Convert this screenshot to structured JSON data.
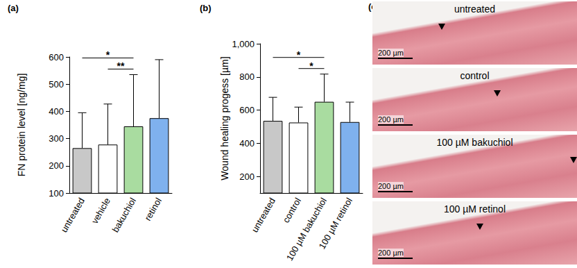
{
  "chart_data": [
    {
      "type": "bar",
      "title": "(a)",
      "y_label": "FN protein level [ng/mg]",
      "categories": [
        "untreated",
        "vehicle",
        "bakuchiol",
        "retinol"
      ],
      "values": [
        265,
        278,
        345,
        375
      ],
      "errors": [
        130,
        149,
        190,
        215
      ],
      "colors": [
        "#c8c8c8",
        "#ffffff",
        "#a9dca0",
        "#7fb1ee"
      ],
      "ylim": [
        100,
        600
      ],
      "yticks": [
        100,
        200,
        300,
        400,
        500,
        600
      ],
      "annotations": [
        {
          "from": "untreated",
          "to": "bakuchiol",
          "label": "*"
        },
        {
          "from": "vehicle",
          "to": "bakuchiol",
          "label": "**"
        }
      ]
    },
    {
      "type": "bar",
      "title": "(b)",
      "y_label": "Wound healing progess [µm]",
      "categories": [
        "untreated",
        "control",
        "100 µM bakuchiol",
        "100 µM retinol"
      ],
      "values": [
        535,
        525,
        650,
        528
      ],
      "errors": [
        142,
        93,
        167,
        120
      ],
      "colors": [
        "#c8c8c8",
        "#ffffff",
        "#a9dca0",
        "#7fb1ee"
      ],
      "ylim": [
        100,
        1000
      ],
      "yticks": [
        200,
        400,
        600,
        800,
        1000
      ],
      "annotations": [
        {
          "from": "untreated",
          "to": "100 µM bakuchiol",
          "label": "*"
        },
        {
          "from": "control",
          "to": "100 µM bakuchiol",
          "label": "*"
        }
      ]
    }
  ],
  "images": {
    "title": "(c)",
    "panels": [
      {
        "label": "untreated",
        "scale_bar": "200 µm"
      },
      {
        "label": "control",
        "scale_bar": "200 µm"
      },
      {
        "label": "100 µM bakuchiol",
        "scale_bar": "200 µm"
      },
      {
        "label": "100 µM retinol",
        "scale_bar": "200 µm"
      }
    ]
  }
}
